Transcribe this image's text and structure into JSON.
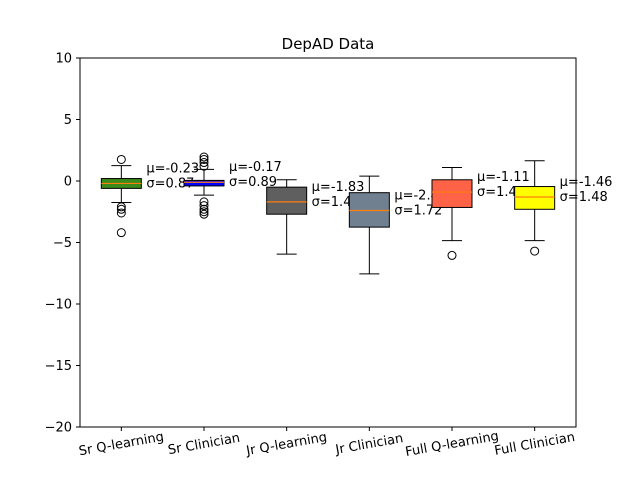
{
  "chart_data": {
    "type": "boxplot",
    "title": "DepAD Data",
    "xlabel": "",
    "ylabel": "",
    "ylim": [
      -20,
      10
    ],
    "yticks": [
      10,
      5,
      0,
      -5,
      -10,
      -15,
      -20
    ],
    "ytick_labels": [
      "10",
      "5",
      "0",
      "−5",
      "−10",
      "−15",
      "−20"
    ],
    "grid": false,
    "categories": [
      "Sr Q-learning",
      "Sr Clinician",
      "Jr Q-learning",
      "Jr Clinician",
      "Full Q-learning",
      "Full Clinician"
    ],
    "boxes": [
      {
        "label": "Sr Q-learning",
        "color": "#3a8a1c",
        "whisker_low": -1.75,
        "q1": -0.6,
        "median": -0.2,
        "q3": 0.2,
        "whisker_high": 1.25,
        "outliers": [
          1.75,
          -2.1,
          -2.3,
          -2.6,
          -4.2
        ],
        "mu_label": "μ=-0.23",
        "sigma_label": "σ=0.87"
      },
      {
        "label": "Sr Clinician",
        "color": "#0000ff",
        "whisker_low": -1.15,
        "q1": -0.4,
        "median": -0.1,
        "q3": 0.05,
        "whisker_high": 0.95,
        "outliers": [
          1.2,
          1.5,
          1.75,
          1.95,
          -1.7,
          -2.0,
          -2.3,
          -2.5,
          -2.7
        ],
        "mu_label": "μ=-0.17",
        "sigma_label": "σ=0.89"
      },
      {
        "label": "Jr Q-learning",
        "color": "#5f5f5f",
        "whisker_low": -5.95,
        "q1": -2.7,
        "median": -1.7,
        "q3": -0.5,
        "whisker_high": 0.1,
        "outliers": [],
        "mu_label": "μ=-1.83",
        "sigma_label": "σ=1.47"
      },
      {
        "label": "Jr Clinician",
        "color": "#708090",
        "whisker_low": -7.55,
        "q1": -3.75,
        "median": -2.4,
        "q3": -0.95,
        "whisker_high": 0.4,
        "outliers": [],
        "mu_label": "μ=-2.46",
        "sigma_label": "σ=1.72"
      },
      {
        "label": "Full Q-learning",
        "color": "#ff6347",
        "whisker_low": -4.85,
        "q1": -2.15,
        "median": -0.9,
        "q3": 0.1,
        "whisker_high": 1.1,
        "outliers": [
          -6.05
        ],
        "mu_label": "μ=-1.11",
        "sigma_label": "σ=1.47"
      },
      {
        "label": "Full Clinician",
        "color": "#ffff00",
        "whisker_low": -4.85,
        "q1": -2.3,
        "median": -1.3,
        "q3": -0.45,
        "whisker_high": 1.65,
        "outliers": [
          -5.7
        ],
        "mu_label": "μ=-1.46",
        "sigma_label": "σ=1.48"
      }
    ],
    "median_color": "#ff7f0e"
  }
}
